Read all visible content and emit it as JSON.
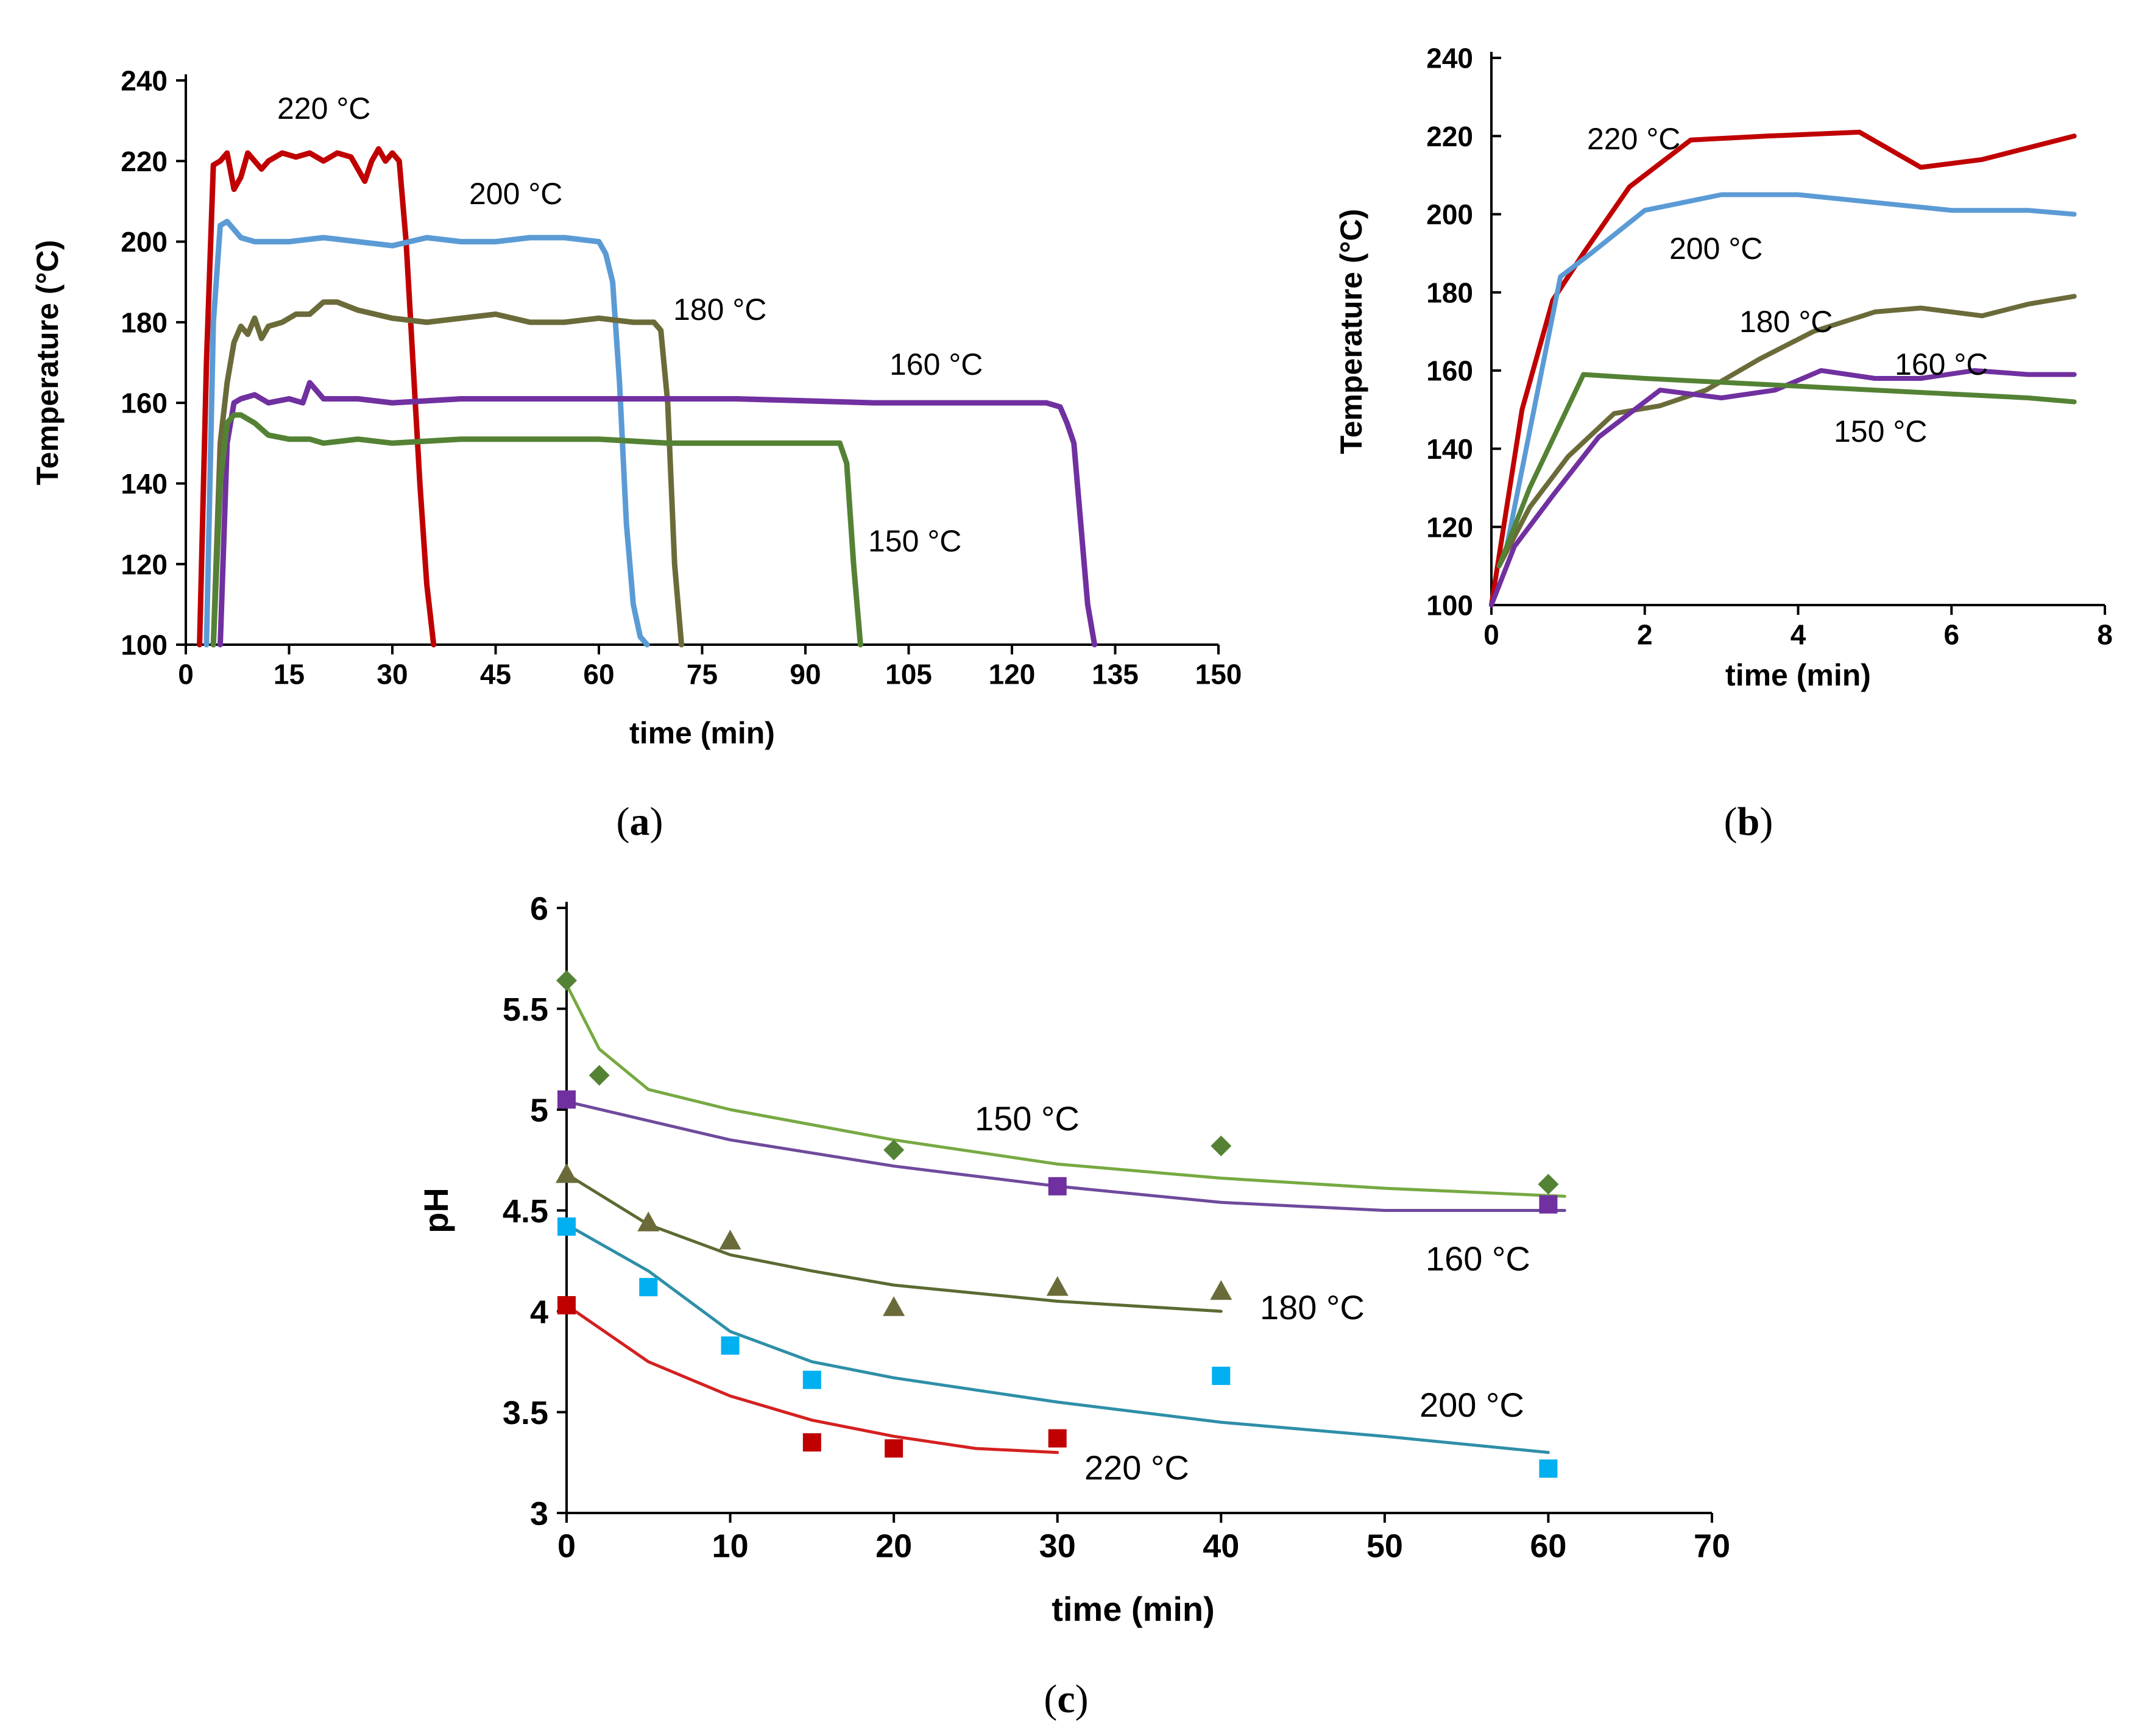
{
  "chart_data": [
    {
      "id": "a",
      "type": "line",
      "panel_label": "a",
      "xlabel": "time (min)",
      "ylabel": "Temperature  (°C)",
      "xlim": [
        0,
        150
      ],
      "ylim": [
        100,
        240
      ],
      "xticks": [
        0,
        15,
        30,
        45,
        60,
        75,
        90,
        105,
        120,
        135,
        150
      ],
      "yticks": [
        100,
        120,
        140,
        160,
        180,
        200,
        220,
        240
      ],
      "series": [
        {
          "name": "220 °C",
          "color": "#c00000",
          "x": [
            2,
            3,
            4,
            5,
            6,
            7,
            8,
            9,
            10,
            11,
            12,
            14,
            16,
            18,
            20,
            22,
            24,
            26,
            27,
            28,
            29,
            30,
            31,
            32,
            33,
            34,
            35,
            36
          ],
          "y": [
            100,
            170,
            219,
            220,
            222,
            213,
            216,
            222,
            220,
            218,
            220,
            222,
            221,
            222,
            220,
            222,
            221,
            215,
            220,
            223,
            220,
            222,
            220,
            200,
            170,
            140,
            115,
            100
          ]
        },
        {
          "name": "200 °C",
          "color": "#5b9bd5",
          "x": [
            3,
            4,
            5,
            6,
            7,
            8,
            10,
            15,
            20,
            25,
            30,
            35,
            40,
            45,
            50,
            55,
            60,
            61,
            62,
            63,
            64,
            65,
            66,
            67
          ],
          "y": [
            100,
            180,
            204,
            205,
            203,
            201,
            200,
            200,
            201,
            200,
            199,
            201,
            200,
            200,
            201,
            201,
            200,
            197,
            190,
            165,
            130,
            110,
            102,
            100
          ]
        },
        {
          "name": "180 °C",
          "color": "#6b6b3a",
          "x": [
            4,
            5,
            6,
            7,
            8,
            9,
            10,
            11,
            12,
            14,
            16,
            18,
            20,
            22,
            25,
            30,
            35,
            40,
            45,
            50,
            55,
            60,
            65,
            68,
            69,
            70,
            71,
            72
          ],
          "y": [
            100,
            150,
            165,
            175,
            179,
            177,
            181,
            176,
            179,
            180,
            182,
            182,
            185,
            185,
            183,
            181,
            180,
            181,
            182,
            180,
            180,
            181,
            180,
            180,
            178,
            160,
            120,
            100
          ]
        },
        {
          "name": "160 °C",
          "color": "#7030a0",
          "x": [
            5,
            6,
            7,
            8,
            10,
            12,
            15,
            17,
            18,
            20,
            25,
            30,
            40,
            60,
            80,
            100,
            120,
            125,
            127,
            128,
            129,
            130,
            131,
            132
          ],
          "y": [
            100,
            150,
            160,
            161,
            162,
            160,
            161,
            160,
            165,
            161,
            161,
            160,
            161,
            161,
            161,
            160,
            160,
            160,
            159,
            155,
            150,
            130,
            110,
            100
          ]
        },
        {
          "name": "150 °C",
          "color": "#548235",
          "x": [
            4,
            5,
            6,
            7,
            8,
            10,
            12,
            15,
            18,
            20,
            25,
            30,
            40,
            50,
            60,
            70,
            80,
            90,
            95,
            96,
            97,
            98
          ],
          "y": [
            100,
            140,
            155,
            157,
            157,
            155,
            152,
            151,
            151,
            150,
            151,
            150,
            151,
            151,
            151,
            150,
            150,
            150,
            150,
            145,
            120,
            100
          ]
        }
      ],
      "annotations": [
        "220 °C",
        "200 °C",
        "180 °C",
        "160 °C",
        "150 °C"
      ]
    },
    {
      "id": "b",
      "type": "line",
      "panel_label": "b",
      "xlabel": "time (min)",
      "ylabel": "Temperature  (°C)",
      "xlim": [
        0,
        8
      ],
      "ylim": [
        100,
        240
      ],
      "xticks": [
        0,
        2,
        4,
        6,
        8
      ],
      "yticks": [
        100,
        120,
        140,
        160,
        180,
        200,
        220,
        240
      ],
      "series": [
        {
          "name": "220 °C",
          "color": "#c00000",
          "x": [
            0,
            0.4,
            0.8,
            1.2,
            1.8,
            2.6,
            3.6,
            4.8,
            5.6,
            6.4,
            7.0,
            7.6
          ],
          "y": [
            100,
            150,
            178,
            190,
            207,
            219,
            220,
            221,
            212,
            214,
            217,
            220
          ]
        },
        {
          "name": "200 °C",
          "color": "#5b9bd5",
          "x": [
            0.2,
            0.9,
            1.3,
            2.0,
            3.0,
            4.0,
            5.0,
            6.0,
            7.0,
            7.6
          ],
          "y": [
            115,
            184,
            190,
            201,
            205,
            205,
            203,
            201,
            201,
            200
          ]
        },
        {
          "name": "180 °C",
          "color": "#6b6b3a",
          "x": [
            0.1,
            0.5,
            1.0,
            1.6,
            2.2,
            2.8,
            3.5,
            4.2,
            5.0,
            5.6,
            6.4,
            7.0,
            7.6
          ],
          "y": [
            110,
            125,
            138,
            149,
            151,
            155,
            163,
            170,
            175,
            176,
            174,
            177,
            179
          ]
        },
        {
          "name": "160 °C",
          "color": "#7030a0",
          "x": [
            0,
            0.3,
            0.8,
            1.4,
            2.2,
            3.0,
            3.7,
            4.3,
            5.0,
            5.6,
            6.3,
            7.0,
            7.6
          ],
          "y": [
            100,
            115,
            128,
            143,
            155,
            153,
            155,
            160,
            158,
            158,
            160,
            159,
            159
          ]
        },
        {
          "name": "150 °C",
          "color": "#548235",
          "x": [
            0.1,
            0.5,
            1.2,
            2.0,
            3.0,
            4.0,
            5.0,
            6.0,
            7.0,
            7.6
          ],
          "y": [
            110,
            130,
            159,
            158,
            157,
            156,
            155,
            154,
            153,
            152
          ]
        }
      ],
      "annotations": [
        "220 °C",
        "200 °C",
        "180 °C",
        "160 °C",
        "150 °C"
      ]
    },
    {
      "id": "c",
      "type": "scatter",
      "panel_label": "c",
      "xlabel": "time  (min)",
      "ylabel": "pH",
      "xlim": [
        0,
        70
      ],
      "ylim": [
        3,
        6
      ],
      "xticks": [
        0,
        10,
        20,
        30,
        40,
        50,
        60,
        70
      ],
      "yticks": [
        3,
        3.5,
        4,
        4.5,
        5,
        5.5,
        6
      ],
      "series": [
        {
          "name": "150 °C",
          "color": "#548235",
          "fit_color": "#77a942",
          "marker": "diamond",
          "x": [
            0,
            2,
            20,
            40,
            60
          ],
          "y": [
            5.64,
            5.17,
            4.8,
            4.82,
            4.63
          ],
          "fit_x": [
            0,
            2,
            5,
            10,
            20,
            30,
            40,
            50,
            61
          ],
          "fit_y": [
            5.62,
            5.3,
            5.1,
            5.0,
            4.85,
            4.73,
            4.66,
            4.61,
            4.57
          ]
        },
        {
          "name": "160 °C",
          "color": "#7030a0",
          "fit_color": "#6f4a9c",
          "marker": "square",
          "x": [
            0,
            30,
            60
          ],
          "y": [
            5.05,
            4.62,
            4.53
          ],
          "fit_x": [
            0,
            10,
            20,
            30,
            40,
            50,
            61
          ],
          "fit_y": [
            5.04,
            4.85,
            4.72,
            4.62,
            4.54,
            4.5,
            4.5
          ]
        },
        {
          "name": "180 °C",
          "color": "#6b6b3a",
          "fit_color": "#5b6a32",
          "marker": "triangle",
          "x": [
            0,
            5,
            10,
            20,
            30,
            40
          ],
          "y": [
            4.68,
            4.44,
            4.35,
            4.02,
            4.12,
            4.1
          ],
          "fit_x": [
            0,
            5,
            10,
            15,
            20,
            30,
            40
          ],
          "fit_y": [
            4.68,
            4.43,
            4.28,
            4.2,
            4.13,
            4.05,
            4.0
          ]
        },
        {
          "name": "200 °C",
          "color": "#00b0f0",
          "fit_color": "#2e8fa8",
          "marker": "square",
          "x": [
            0,
            5,
            10,
            15,
            40,
            60
          ],
          "y": [
            4.42,
            4.12,
            3.83,
            3.66,
            3.68,
            3.22
          ],
          "fit_x": [
            0,
            5,
            10,
            15,
            20,
            30,
            40,
            50,
            60
          ],
          "fit_y": [
            4.43,
            4.2,
            3.9,
            3.75,
            3.67,
            3.55,
            3.45,
            3.38,
            3.3
          ]
        },
        {
          "name": "220 °C",
          "color": "#c00000",
          "fit_color": "#d42020",
          "marker": "square",
          "x": [
            0,
            15,
            20,
            30
          ],
          "y": [
            4.03,
            3.35,
            3.32,
            3.37
          ],
          "fit_x": [
            0,
            5,
            10,
            15,
            20,
            25,
            30
          ],
          "fit_y": [
            4.03,
            3.75,
            3.58,
            3.46,
            3.38,
            3.32,
            3.3
          ]
        }
      ],
      "annotations": [
        "150 °C",
        "160 °C",
        "180 °C",
        "200 °C",
        "220 °C"
      ]
    }
  ]
}
